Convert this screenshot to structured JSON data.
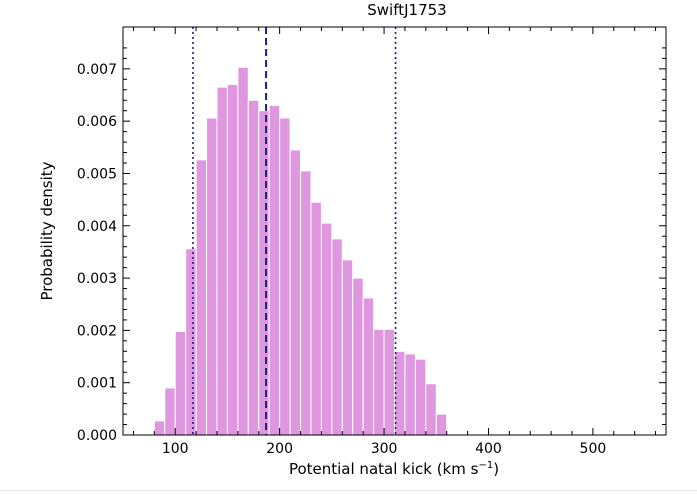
{
  "chart_data": {
    "type": "bar",
    "title": "SwiftJ1753",
    "xlabel_prefix": "Potential natal kick (km s",
    "xlabel_sup": "−1",
    "xlabel_suffix": ")",
    "ylabel": "Probability density",
    "xlim": [
      50,
      570
    ],
    "ylim": [
      0,
      0.0078
    ],
    "xticks": [
      100,
      200,
      300,
      400,
      500
    ],
    "yticks": [
      0.0,
      0.001,
      0.002,
      0.003,
      0.004,
      0.005,
      0.006,
      0.007
    ],
    "ytick_labels": [
      "0.000",
      "0.001",
      "0.002",
      "0.003",
      "0.004",
      "0.005",
      "0.006",
      "0.007"
    ],
    "bin_width": 10,
    "bin_starts": [
      80,
      90,
      100,
      110,
      120,
      130,
      140,
      150,
      160,
      170,
      180,
      190,
      200,
      210,
      220,
      230,
      240,
      250,
      260,
      270,
      280,
      290,
      300,
      310,
      320,
      330,
      340,
      350
    ],
    "values": [
      0.00027,
      0.0009,
      0.00198,
      0.00356,
      0.00526,
      0.00606,
      0.00665,
      0.0067,
      0.00703,
      0.0064,
      0.0062,
      0.0063,
      0.00606,
      0.00545,
      0.00505,
      0.00445,
      0.00405,
      0.00375,
      0.00335,
      0.003,
      0.00262,
      0.00202,
      0.00202,
      0.0016,
      0.00155,
      0.00145,
      0.00098,
      0.0004
    ],
    "bar_color": "#df98e0",
    "median": 187,
    "lower_bound": 117,
    "upper_bound": 311,
    "line_color": "#1f1f8a",
    "grid": false
  }
}
